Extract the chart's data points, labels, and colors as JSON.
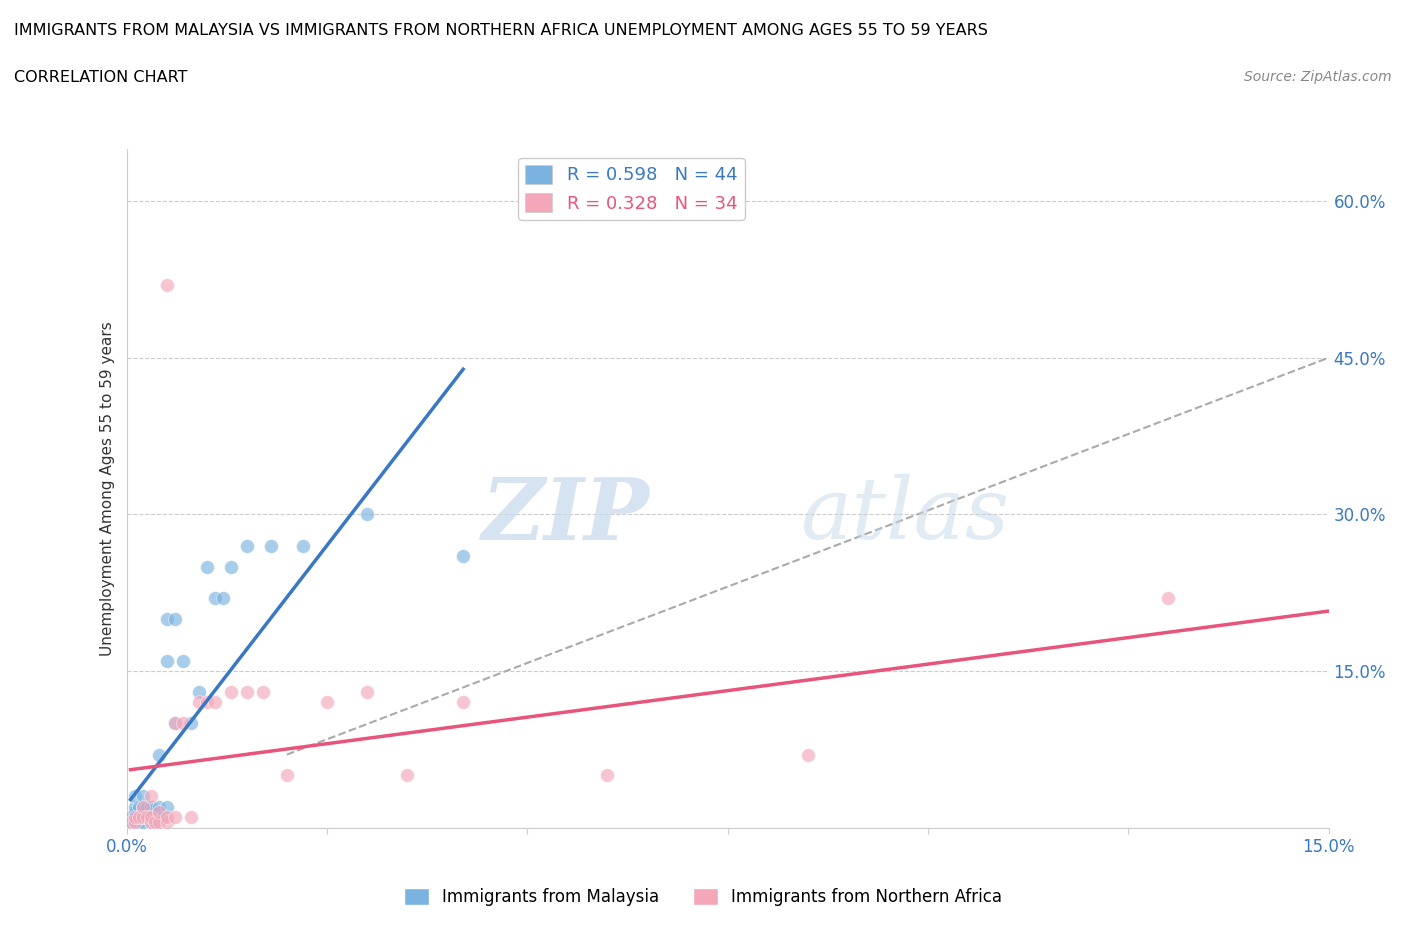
{
  "title_line1": "IMMIGRANTS FROM MALAYSIA VS IMMIGRANTS FROM NORTHERN AFRICA UNEMPLOYMENT AMONG AGES 55 TO 59 YEARS",
  "title_line2": "CORRELATION CHART",
  "source": "Source: ZipAtlas.com",
  "ylabel": "Unemployment Among Ages 55 to 59 years",
  "xlim": [
    0,
    0.15
  ],
  "ylim": [
    0,
    0.65
  ],
  "xticks": [
    0.0,
    0.025,
    0.05,
    0.075,
    0.1,
    0.125,
    0.15
  ],
  "ytick_right_vals": [
    0.0,
    0.15,
    0.3,
    0.45,
    0.6
  ],
  "ytick_right_labels": [
    "",
    "15.0%",
    "30.0%",
    "45.0%",
    "60.0%"
  ],
  "R_malaysia": 0.598,
  "N_malaysia": 44,
  "R_n_africa": 0.328,
  "N_n_africa": 34,
  "color_malaysia": "#7ab3e0",
  "color_n_africa": "#f4a7b9",
  "color_trend_malaysia": "#3878c5",
  "color_trend_n_africa": "#e8547a",
  "color_trend_dashed": "#aaaaaa",
  "watermark_zip": "ZIP",
  "watermark_atlas": "atlas",
  "malaysia_x": [
    0.0005,
    0.0005,
    0.001,
    0.001,
    0.001,
    0.001,
    0.001,
    0.0015,
    0.0015,
    0.0015,
    0.002,
    0.002,
    0.002,
    0.002,
    0.002,
    0.0025,
    0.0025,
    0.003,
    0.003,
    0.003,
    0.003,
    0.0035,
    0.004,
    0.004,
    0.004,
    0.004,
    0.0045,
    0.005,
    0.005,
    0.005,
    0.006,
    0.006,
    0.007,
    0.008,
    0.009,
    0.01,
    0.011,
    0.012,
    0.013,
    0.015,
    0.018,
    0.022,
    0.03,
    0.042
  ],
  "malaysia_y": [
    0.005,
    0.01,
    0.005,
    0.01,
    0.015,
    0.02,
    0.03,
    0.005,
    0.01,
    0.02,
    0.005,
    0.01,
    0.015,
    0.02,
    0.03,
    0.01,
    0.02,
    0.005,
    0.01,
    0.015,
    0.02,
    0.005,
    0.01,
    0.015,
    0.02,
    0.07,
    0.01,
    0.02,
    0.16,
    0.2,
    0.1,
    0.2,
    0.16,
    0.1,
    0.13,
    0.25,
    0.22,
    0.22,
    0.25,
    0.27,
    0.27,
    0.27,
    0.3,
    0.26
  ],
  "n_africa_x": [
    0.0005,
    0.001,
    0.001,
    0.0015,
    0.002,
    0.002,
    0.0025,
    0.003,
    0.003,
    0.003,
    0.0035,
    0.004,
    0.004,
    0.005,
    0.005,
    0.005,
    0.006,
    0.006,
    0.007,
    0.008,
    0.009,
    0.01,
    0.011,
    0.013,
    0.015,
    0.017,
    0.02,
    0.025,
    0.03,
    0.035,
    0.042,
    0.06,
    0.085,
    0.13
  ],
  "n_africa_y": [
    0.005,
    0.005,
    0.01,
    0.01,
    0.01,
    0.02,
    0.01,
    0.005,
    0.01,
    0.03,
    0.005,
    0.005,
    0.015,
    0.005,
    0.01,
    0.52,
    0.01,
    0.1,
    0.1,
    0.01,
    0.12,
    0.12,
    0.12,
    0.13,
    0.13,
    0.13,
    0.05,
    0.12,
    0.13,
    0.05,
    0.12,
    0.05,
    0.07,
    0.22
  ]
}
